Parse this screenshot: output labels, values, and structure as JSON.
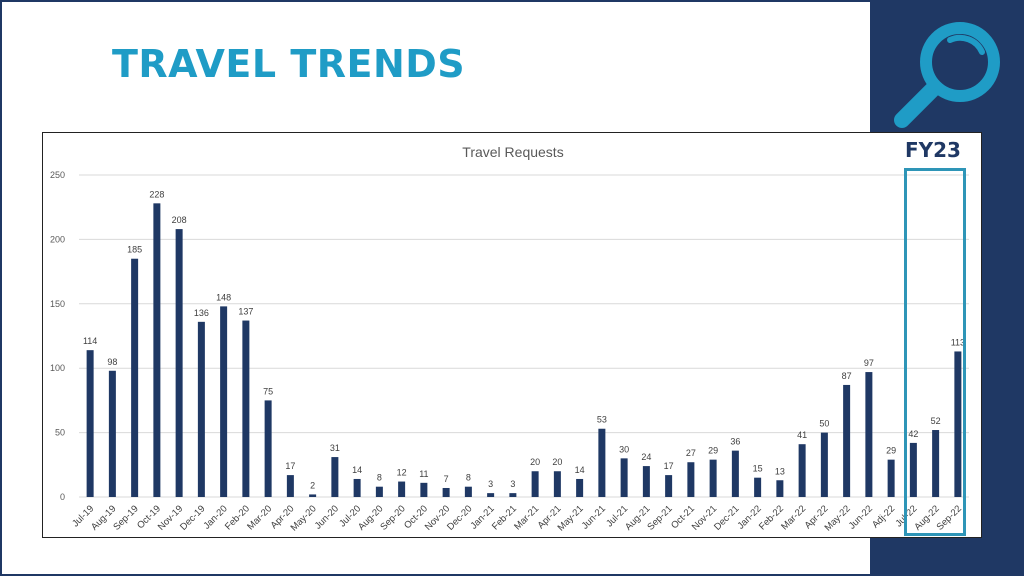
{
  "slide": {
    "title": "TRAVEL TRENDS",
    "fy_label": "FY23"
  },
  "colors": {
    "title": "#1f9cc6",
    "bar": "#1f3864",
    "background_panel": "#1f3864",
    "highlight_box": "#2e95b7",
    "icon": "#1f9cc6"
  },
  "icons": {
    "magnifier": "magnifying-glass-icon"
  },
  "chart_data": {
    "type": "bar",
    "title": "Travel Requests",
    "xlabel": "",
    "ylabel": "",
    "ylim": [
      0,
      250
    ],
    "yticks": [
      0,
      50,
      100,
      150,
      200,
      250
    ],
    "grid": true,
    "categories": [
      "Jul-19",
      "Aug-19",
      "Sep-19",
      "Oct-19",
      "Nov-19",
      "Dec-19",
      "Jan-20",
      "Feb-20",
      "Mar-20",
      "Apr-20",
      "May-20",
      "Jun-20",
      "Jul-20",
      "Aug-20",
      "Sep-20",
      "Oct-20",
      "Nov-20",
      "Dec-20",
      "Jan-21",
      "Feb-21",
      "Mar-21",
      "Apr-21",
      "May-21",
      "Jun-21",
      "Jul-21",
      "Aug-21",
      "Sep-21",
      "Oct-21",
      "Nov-21",
      "Dec-21",
      "Jan-22",
      "Feb-22",
      "Mar-22",
      "Apr-22",
      "May-22",
      "Jun-22",
      "Adj-22",
      "Jul-22",
      "Aug-22",
      "Sep-22"
    ],
    "values": [
      114,
      98,
      185,
      228,
      208,
      136,
      148,
      137,
      75,
      17,
      2,
      31,
      14,
      8,
      12,
      11,
      7,
      8,
      3,
      3,
      20,
      20,
      14,
      53,
      30,
      24,
      17,
      27,
      29,
      36,
      15,
      13,
      41,
      50,
      87,
      97,
      29,
      42,
      52,
      113
    ],
    "highlight_categories": [
      "Jul-22",
      "Aug-22",
      "Sep-22"
    ]
  }
}
